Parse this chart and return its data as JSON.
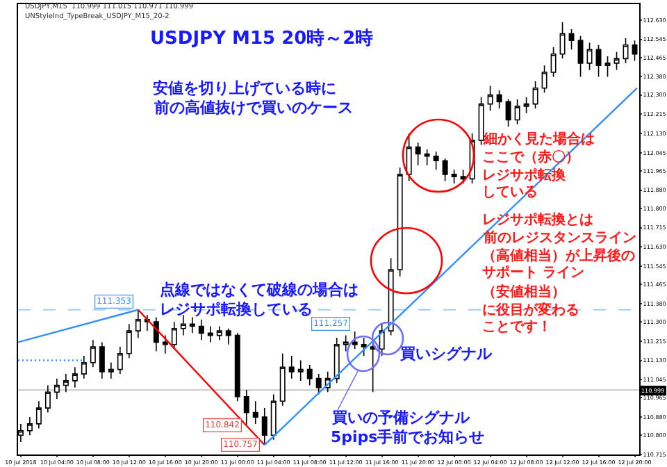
{
  "chart_data": {
    "type": "candlestick",
    "title": "USDJPY M15 20時～2時",
    "x": [
      "2018-07-10T00:00",
      "2018-07-10T01:00",
      "2018-07-10T02:00",
      "2018-07-10T03:00",
      "2018-07-10T04:00",
      "2018-07-10T05:00",
      "2018-07-10T06:00",
      "2018-07-10T07:00",
      "2018-07-10T08:00",
      "2018-07-10T09:00",
      "2018-07-10T10:00",
      "2018-07-10T11:00",
      "2018-07-10T12:00",
      "2018-07-10T13:00",
      "2018-07-10T14:00",
      "2018-07-10T15:00",
      "2018-07-10T16:00",
      "2018-07-10T17:00",
      "2018-07-10T18:00",
      "2018-07-10T19:00",
      "2018-07-10T20:00",
      "2018-07-10T21:00",
      "2018-07-10T22:00",
      "2018-07-10T23:00",
      "2018-07-11T00:00",
      "2018-07-11T01:00",
      "2018-07-11T02:00",
      "2018-07-11T03:00",
      "2018-07-11T04:00",
      "2018-07-11T05:00",
      "2018-07-11T06:00",
      "2018-07-11T07:00",
      "2018-07-11T08:00",
      "2018-07-11T09:00",
      "2018-07-11T10:00",
      "2018-07-11T11:00",
      "2018-07-11T12:00",
      "2018-07-11T13:00",
      "2018-07-11T14:00",
      "2018-07-11T15:00",
      "2018-07-11T16:00",
      "2018-07-11T17:00",
      "2018-07-11T18:00",
      "2018-07-11T19:00",
      "2018-07-11T20:00",
      "2018-07-11T21:00",
      "2018-07-11T22:00",
      "2018-07-11T23:00",
      "2018-07-12T00:00",
      "2018-07-12T01:00",
      "2018-07-12T02:00",
      "2018-07-12T03:00",
      "2018-07-12T04:00",
      "2018-07-12T05:00",
      "2018-07-12T06:00",
      "2018-07-12T07:00",
      "2018-07-12T08:00",
      "2018-07-12T09:00",
      "2018-07-12T10:00",
      "2018-07-12T11:00",
      "2018-07-12T12:00",
      "2018-07-12T13:00",
      "2018-07-12T14:00",
      "2018-07-12T15:00",
      "2018-07-12T16:00",
      "2018-07-12T17:00",
      "2018-07-12T18:00",
      "2018-07-12T19:00",
      "2018-07-12T20:00"
    ],
    "ohlc": [
      [
        110.8,
        110.85,
        110.77,
        110.82
      ],
      [
        110.82,
        110.88,
        110.8,
        110.85
      ],
      [
        110.85,
        110.95,
        110.83,
        110.92
      ],
      [
        110.92,
        111.02,
        110.9,
        110.99
      ],
      [
        110.99,
        111.05,
        110.96,
        111.02
      ],
      [
        111.02,
        111.07,
        110.99,
        111.04
      ],
      [
        111.04,
        111.1,
        111.01,
        111.07
      ],
      [
        111.07,
        111.15,
        111.05,
        111.12
      ],
      [
        111.12,
        111.22,
        111.1,
        111.19
      ],
      [
        111.19,
        111.21,
        111.05,
        111.08
      ],
      [
        111.08,
        111.12,
        111.05,
        111.09
      ],
      [
        111.09,
        111.19,
        111.07,
        111.16
      ],
      [
        111.16,
        111.29,
        111.14,
        111.26
      ],
      [
        111.26,
        111.353,
        111.23,
        111.31
      ],
      [
        111.31,
        111.33,
        111.26,
        111.3
      ],
      [
        111.3,
        111.32,
        111.17,
        111.21
      ],
      [
        111.21,
        111.24,
        111.16,
        111.2
      ],
      [
        111.2,
        111.3,
        111.18,
        111.27
      ],
      [
        111.27,
        111.33,
        111.24,
        111.29
      ],
      [
        111.29,
        111.32,
        111.25,
        111.28
      ],
      [
        111.28,
        111.31,
        111.22,
        111.25
      ],
      [
        111.25,
        111.28,
        111.21,
        111.24
      ],
      [
        111.24,
        111.28,
        111.22,
        111.26
      ],
      [
        111.26,
        111.27,
        111.2,
        111.24
      ],
      [
        111.24,
        111.25,
        110.95,
        110.97
      ],
      [
        110.97,
        111.0,
        110.842,
        110.9
      ],
      [
        110.9,
        110.95,
        110.85,
        110.88
      ],
      [
        110.88,
        110.92,
        110.757,
        110.8
      ],
      [
        110.8,
        110.98,
        110.78,
        110.95
      ],
      [
        110.95,
        111.16,
        110.93,
        111.1
      ],
      [
        111.1,
        111.15,
        111.05,
        111.08
      ],
      [
        111.08,
        111.13,
        111.04,
        111.09
      ],
      [
        111.09,
        111.11,
        111.02,
        111.05
      ],
      [
        111.05,
        111.07,
        110.98,
        111.01
      ],
      [
        111.01,
        111.08,
        110.99,
        111.05
      ],
      [
        111.05,
        111.23,
        111.03,
        111.2
      ],
      [
        111.2,
        111.24,
        111.17,
        111.21
      ],
      [
        111.21,
        111.257,
        111.18,
        111.2
      ],
      [
        111.2,
        111.23,
        111.15,
        111.19
      ],
      [
        111.19,
        111.21,
        110.99,
        111.18
      ],
      [
        111.18,
        111.29,
        111.15,
        111.26
      ],
      [
        111.26,
        111.58,
        111.24,
        111.53
      ],
      [
        111.53,
        111.98,
        111.5,
        111.95
      ],
      [
        111.95,
        112.13,
        111.92,
        112.07
      ],
      [
        112.07,
        112.09,
        111.99,
        112.04
      ],
      [
        112.04,
        112.06,
        111.99,
        112.03
      ],
      [
        112.03,
        112.05,
        111.97,
        112.01
      ],
      [
        112.01,
        112.02,
        111.92,
        111.95
      ],
      [
        111.95,
        111.97,
        111.91,
        111.94
      ],
      [
        111.94,
        111.97,
        111.91,
        111.93
      ],
      [
        111.93,
        112.13,
        111.91,
        112.1
      ],
      [
        112.1,
        112.29,
        112.08,
        112.26
      ],
      [
        112.26,
        112.34,
        112.23,
        112.3
      ],
      [
        112.3,
        112.32,
        112.24,
        112.27
      ],
      [
        112.27,
        112.28,
        112.16,
        112.19
      ],
      [
        112.19,
        112.28,
        112.17,
        112.25
      ],
      [
        112.25,
        112.29,
        112.22,
        112.26
      ],
      [
        112.26,
        112.36,
        112.24,
        112.33
      ],
      [
        112.33,
        112.43,
        112.31,
        112.4
      ],
      [
        112.4,
        112.51,
        112.38,
        112.48
      ],
      [
        112.48,
        112.62,
        112.46,
        112.57
      ],
      [
        112.57,
        112.59,
        112.5,
        112.54
      ],
      [
        112.54,
        112.56,
        112.38,
        112.44
      ],
      [
        112.44,
        112.53,
        112.41,
        112.5
      ],
      [
        112.5,
        112.52,
        112.38,
        112.43
      ],
      [
        112.43,
        112.47,
        112.38,
        112.44
      ],
      [
        112.44,
        112.49,
        112.41,
        112.46
      ],
      [
        112.46,
        112.55,
        112.44,
        112.52
      ],
      [
        112.52,
        112.54,
        112.45,
        112.48
      ]
    ],
    "series": [
      {
        "type": "line",
        "color": "#2f8fff",
        "line_style": "solid",
        "x": [
          "2018-07-09T23:42",
          "2018-07-10T13:00"
        ],
        "values": [
          111.21,
          111.353
        ]
      },
      {
        "type": "line",
        "color": "#ff0000",
        "line_style": "solid",
        "x": [
          "2018-07-10T13:00",
          "2018-07-11T03:00"
        ],
        "values": [
          111.353,
          110.757
        ]
      },
      {
        "type": "line",
        "color": "#2f8fff",
        "line_style": "solid",
        "x": [
          "2018-07-11T03:00",
          "2018-07-12T20:15"
        ],
        "values": [
          110.757,
          112.33
        ]
      },
      {
        "type": "line",
        "color": "#2f8fff",
        "line_style": "dotted",
        "x": [
          "2018-07-09T23:42",
          "2018-07-10T07:00"
        ],
        "values": [
          111.13,
          111.13
        ]
      }
    ],
    "ref_lines": [
      {
        "axis": "y",
        "value": 111.353,
        "color": "#9fcfff",
        "line_style": "dashed"
      },
      {
        "axis": "y",
        "value": 110.999,
        "label": "110.999",
        "color": "#c8c8c8",
        "line_style": "solid"
      }
    ],
    "annotations": [
      "USDJPY,M15  110.999 111.015 110.971 110.999",
      "UNStyleInd_TypeBreak_USDJPY_M15_20-2",
      "安値を切り上げている時に",
      "前の高値抜けで買いのケース",
      "点線ではなくて破線の場合は",
      "レジサポ転換している",
      "細かく見た場合は",
      "ここで（赤〇）",
      "レジサポ転換",
      "している",
      "レジサポ転換とは",
      "前のレジスタンスライン",
      "（高値相当）が上昇後の",
      "サポート ライン",
      "（安値相当）",
      "に役目が変わる",
      "ことです！",
      "買いシグナル",
      "買いの予備シグナル",
      "5pips手前でお知らせ",
      {
        "text": "111.353",
        "x": "2018-07-10T13:00",
        "y": 111.353
      },
      {
        "text": "110.842",
        "x": "2018-07-11T01:00",
        "y": 110.842
      },
      {
        "text": "110.757",
        "x": "2018-07-11T03:00",
        "y": 110.757
      },
      {
        "text": "111.257",
        "x": "2018-07-11T13:00",
        "y": 111.257
      }
    ],
    "xlim": [
      "2018-07-09T23:42",
      "2018-07-12T20:30"
    ],
    "xticks": [
      {
        "value": "2018-07-10T00:00",
        "label": "10 Jul 2018"
      },
      {
        "value": "2018-07-10T04:00",
        "label": "10 Jul 04:00"
      },
      {
        "value": "2018-07-10T08:00",
        "label": "10 Jul 08:00"
      },
      {
        "value": "2018-07-10T12:00",
        "label": "10 Jul 12:00"
      },
      {
        "value": "2018-07-10T16:00",
        "label": "10 Jul 16:00"
      },
      {
        "value": "2018-07-10T20:00",
        "label": "10 Jul 20:00"
      },
      {
        "value": "2018-07-11T00:00",
        "label": "11 Jul 00:00"
      },
      {
        "value": "2018-07-11T04:00",
        "label": "11 Jul 04:00"
      },
      {
        "value": "2018-07-11T08:00",
        "label": "11 Jul 08:00"
      },
      {
        "value": "2018-07-11T12:00",
        "label": "11 Jul 12:00"
      },
      {
        "value": "2018-07-11T16:00",
        "label": "11 Jul 16:00"
      },
      {
        "value": "2018-07-11T20:00",
        "label": "11 Jul 20:00"
      },
      {
        "value": "2018-07-12T00:00",
        "label": "12 Jul 00:00"
      },
      {
        "value": "2018-07-12T04:00",
        "label": "12 Jul 04:00"
      },
      {
        "value": "2018-07-12T08:00",
        "label": "12 Jul 08:00"
      },
      {
        "value": "2018-07-12T12:00",
        "label": "12 Jul 12:00"
      },
      {
        "value": "2018-07-12T16:00",
        "label": "12 Jul 16:00"
      },
      {
        "value": "2018-07-12T20:00",
        "label": "12 Jul 20:00"
      }
    ],
    "ylim": [
      110.715,
      112.7
    ],
    "yticks": [
      {
        "value": 110.715,
        "label": "110.715"
      },
      {
        "value": 110.8,
        "label": "110.800"
      },
      {
        "value": 110.88,
        "label": "110.880"
      },
      {
        "value": 110.965,
        "label": "110.965"
      },
      {
        "value": 111.045,
        "label": "111.045"
      },
      {
        "value": 111.13,
        "label": "111.130"
      },
      {
        "value": 111.215,
        "label": "111.215"
      },
      {
        "value": 111.3,
        "label": "111.300"
      },
      {
        "value": 111.38,
        "label": "111.380"
      },
      {
        "value": 111.465,
        "label": "111.465"
      },
      {
        "value": 111.545,
        "label": "111.545"
      },
      {
        "value": 111.63,
        "label": "111.630"
      },
      {
        "value": 111.715,
        "label": "111.715"
      },
      {
        "value": 111.8,
        "label": "111.800"
      },
      {
        "value": 111.88,
        "label": "111.880"
      },
      {
        "value": 111.965,
        "label": "111.965"
      },
      {
        "value": 112.045,
        "label": "112.045"
      },
      {
        "value": 112.13,
        "label": "112.130"
      },
      {
        "value": 112.215,
        "label": "112.215"
      },
      {
        "value": 112.3,
        "label": "112.300"
      },
      {
        "value": 112.38,
        "label": "112.380"
      },
      {
        "value": 112.465,
        "label": "112.465"
      },
      {
        "value": 112.545,
        "label": "112.545"
      },
      {
        "value": 112.63,
        "label": "112.630"
      }
    ],
    "grid": false
  }
}
